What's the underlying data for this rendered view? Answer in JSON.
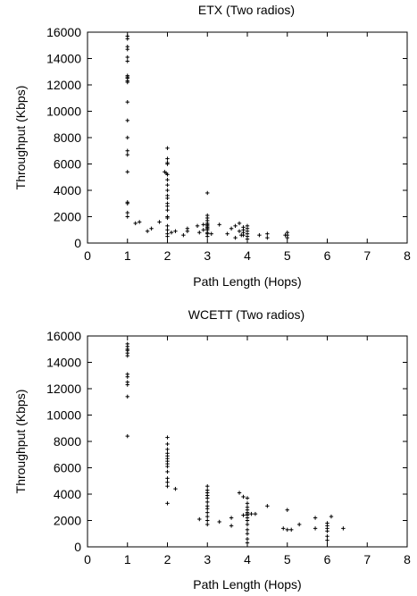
{
  "chart_data": [
    {
      "type": "scatter",
      "title": "ETX (Two radios)",
      "xlabel": "Path Length (Hops)",
      "ylabel": "Throughput (Kbps)",
      "xlim": [
        0,
        8
      ],
      "ylim": [
        0,
        16000
      ],
      "xticks": [
        "0",
        "1",
        "2",
        "3",
        "4",
        "5",
        "6",
        "7",
        "8"
      ],
      "yticks": [
        "0",
        "2000",
        "4000",
        "6000",
        "8000",
        "10000",
        "12000",
        "14000",
        "16000"
      ],
      "grid": false,
      "marker": "+",
      "series": [
        {
          "points": [
            [
              1,
              15700
            ],
            [
              1,
              15500
            ],
            [
              1,
              14900
            ],
            [
              1,
              14700
            ],
            [
              1,
              14100
            ],
            [
              1,
              13800
            ],
            [
              1,
              12700
            ],
            [
              1,
              12600
            ],
            [
              1,
              12500
            ],
            [
              1,
              12300
            ],
            [
              1,
              12200
            ],
            [
              1,
              10700
            ],
            [
              1,
              9300
            ],
            [
              1,
              8000
            ],
            [
              1,
              7000
            ],
            [
              1,
              6700
            ],
            [
              1,
              5400
            ],
            [
              1,
              3100
            ],
            [
              1,
              3000
            ],
            [
              1,
              2300
            ],
            [
              1,
              2000
            ],
            [
              1.2,
              1500
            ],
            [
              1.3,
              1600
            ],
            [
              1.5,
              900
            ],
            [
              1.6,
              1100
            ],
            [
              1.8,
              1600
            ],
            [
              1.93,
              5400
            ],
            [
              1.97,
              5300
            ],
            [
              2,
              7200
            ],
            [
              2,
              6400
            ],
            [
              2,
              6100
            ],
            [
              2,
              6000
            ],
            [
              2,
              5200
            ],
            [
              2,
              4800
            ],
            [
              2,
              4400
            ],
            [
              2,
              4000
            ],
            [
              2,
              3600
            ],
            [
              2,
              3400
            ],
            [
              2,
              3000
            ],
            [
              2,
              2800
            ],
            [
              2,
              2500
            ],
            [
              2,
              2000
            ],
            [
              2,
              1900
            ],
            [
              2,
              1300
            ],
            [
              2,
              1000
            ],
            [
              2,
              700
            ],
            [
              2,
              500
            ],
            [
              2.1,
              800
            ],
            [
              2.2,
              900
            ],
            [
              2.4,
              600
            ],
            [
              2.5,
              900
            ],
            [
              2.5,
              1100
            ],
            [
              2.75,
              1300
            ],
            [
              2.8,
              800
            ],
            [
              2.9,
              1000
            ],
            [
              2.9,
              1400
            ],
            [
              3,
              3800
            ],
            [
              3,
              2100
            ],
            [
              3,
              1900
            ],
            [
              3,
              1700
            ],
            [
              3,
              1500
            ],
            [
              3,
              1400
            ],
            [
              3,
              1300
            ],
            [
              3,
              1200
            ],
            [
              3,
              1100
            ],
            [
              3,
              1000
            ],
            [
              3,
              800
            ],
            [
              3,
              700
            ],
            [
              3,
              500
            ],
            [
              3.1,
              700
            ],
            [
              3.3,
              1400
            ],
            [
              3.5,
              700
            ],
            [
              3.6,
              1100
            ],
            [
              3.7,
              1300
            ],
            [
              3.7,
              400
            ],
            [
              3.8,
              900
            ],
            [
              3.8,
              1500
            ],
            [
              3.85,
              600
            ],
            [
              3.9,
              1200
            ],
            [
              3.9,
              1000
            ],
            [
              3.9,
              800
            ],
            [
              3.9,
              600
            ],
            [
              4,
              1300
            ],
            [
              4,
              1100
            ],
            [
              4,
              900
            ],
            [
              4,
              700
            ],
            [
              4,
              500
            ],
            [
              4,
              300
            ],
            [
              4.3,
              600
            ],
            [
              4.5,
              400
            ],
            [
              4.5,
              700
            ],
            [
              4.95,
              600
            ],
            [
              5,
              400
            ],
            [
              5,
              600
            ],
            [
              5,
              800
            ]
          ]
        }
      ]
    },
    {
      "type": "scatter",
      "title": "WCETT (Two radios)",
      "xlabel": "Path Length (Hops)",
      "ylabel": "Throughput (Kbps)",
      "xlim": [
        0,
        8
      ],
      "ylim": [
        0,
        16000
      ],
      "xticks": [
        "0",
        "1",
        "2",
        "3",
        "4",
        "5",
        "6",
        "7",
        "8"
      ],
      "yticks": [
        "0",
        "2000",
        "4000",
        "6000",
        "8000",
        "10000",
        "12000",
        "14000",
        "16000"
      ],
      "grid": false,
      "marker": "+",
      "series": [
        {
          "points": [
            [
              1,
              15400
            ],
            [
              1,
              15200
            ],
            [
              1,
              15000
            ],
            [
              1,
              14900
            ],
            [
              1,
              14700
            ],
            [
              1,
              14500
            ],
            [
              1,
              13100
            ],
            [
              1,
              12900
            ],
            [
              1,
              12500
            ],
            [
              1,
              12300
            ],
            [
              1,
              11400
            ],
            [
              1,
              8400
            ],
            [
              2,
              8300
            ],
            [
              2,
              7800
            ],
            [
              2,
              7400
            ],
            [
              2,
              7100
            ],
            [
              2,
              6900
            ],
            [
              2,
              6700
            ],
            [
              2,
              6500
            ],
            [
              2,
              6300
            ],
            [
              2,
              6100
            ],
            [
              2,
              5700
            ],
            [
              2,
              5200
            ],
            [
              2,
              4900
            ],
            [
              2,
              4600
            ],
            [
              2,
              3300
            ],
            [
              2.2,
              4400
            ],
            [
              3,
              4600
            ],
            [
              3,
              4300
            ],
            [
              3,
              4100
            ],
            [
              3,
              3900
            ],
            [
              3,
              3700
            ],
            [
              3,
              3400
            ],
            [
              3,
              3100
            ],
            [
              3,
              2900
            ],
            [
              3,
              2600
            ],
            [
              3,
              2300
            ],
            [
              3,
              2000
            ],
            [
              3,
              1700
            ],
            [
              2.8,
              2100
            ],
            [
              3.3,
              1900
            ],
            [
              3.6,
              2200
            ],
            [
              3.6,
              1600
            ],
            [
              3.8,
              4100
            ],
            [
              3.9,
              3800
            ],
            [
              3.9,
              2400
            ],
            [
              4,
              3700
            ],
            [
              4,
              3300
            ],
            [
              4,
              3000
            ],
            [
              4,
              2800
            ],
            [
              4,
              2600
            ],
            [
              4,
              2500
            ],
            [
              4,
              2400
            ],
            [
              4,
              2200
            ],
            [
              4,
              2000
            ],
            [
              4,
              1700
            ],
            [
              4,
              1300
            ],
            [
              4,
              1000
            ],
            [
              4,
              600
            ],
            [
              4,
              300
            ],
            [
              4.1,
              2500
            ],
            [
              4.2,
              2500
            ],
            [
              4.5,
              3100
            ],
            [
              4.9,
              1400
            ],
            [
              5,
              1300
            ],
            [
              5,
              2800
            ],
            [
              5.1,
              1300
            ],
            [
              5.3,
              1700
            ],
            [
              5.7,
              2200
            ],
            [
              5.7,
              1400
            ],
            [
              6,
              1800
            ],
            [
              6,
              1600
            ],
            [
              6,
              1400
            ],
            [
              6,
              1200
            ],
            [
              6,
              800
            ],
            [
              6,
              500
            ],
            [
              6.1,
              2300
            ],
            [
              6.4,
              1400
            ]
          ]
        }
      ]
    }
  ]
}
